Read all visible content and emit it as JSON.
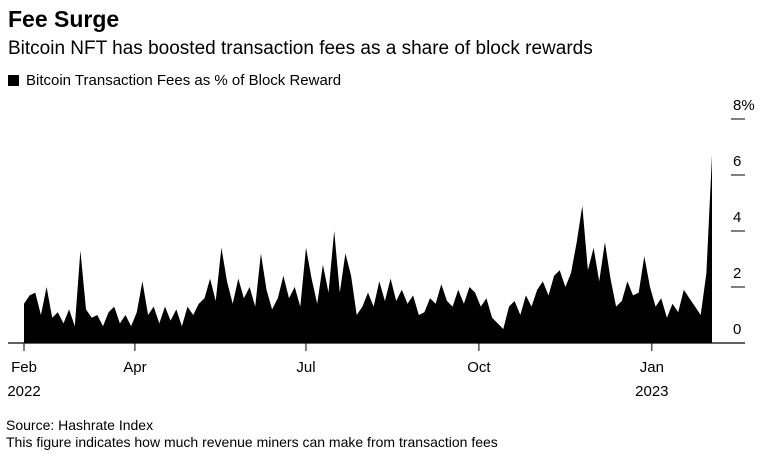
{
  "header": {
    "title": "Fee Surge",
    "subtitle": "Bitcoin NFT has boosted transaction fees as a share of block rewards"
  },
  "legend": {
    "label": "Bitcoin Transaction Fees as % of Block Reward",
    "color": "#000000"
  },
  "footer": {
    "source": "Source: Hashrate Index",
    "note": "This figure indicates how much revenue miners can make from transaction fees"
  },
  "chart_data": {
    "type": "area",
    "title": "Fee Surge",
    "subtitle": "Bitcoin NFT has boosted transaction fees as a share of block rewards",
    "xlabel": "",
    "ylabel": "",
    "ylim": [
      0,
      8
    ],
    "y_ticks": [
      {
        "value": 0,
        "label": "0"
      },
      {
        "value": 2,
        "label": "2"
      },
      {
        "value": 4,
        "label": "4"
      },
      {
        "value": 6,
        "label": "6"
      },
      {
        "value": 8,
        "label": "8%"
      }
    ],
    "x_ticks": [
      {
        "date": "2022-02-01",
        "label": "Feb",
        "sublabel": "2022"
      },
      {
        "date": "2022-04-01",
        "label": "Apr",
        "sublabel": ""
      },
      {
        "date": "2022-07-01",
        "label": "Jul",
        "sublabel": ""
      },
      {
        "date": "2022-10-01",
        "label": "Oct",
        "sublabel": ""
      },
      {
        "date": "2023-01-01",
        "label": "Jan",
        "sublabel": "2023"
      }
    ],
    "grid": false,
    "y_axis_side": "right",
    "legend_position": "top-left",
    "series": [
      {
        "name": "Bitcoin Transaction Fees as % of Block Reward",
        "color": "#000000",
        "points": [
          [
            "2022-02-01",
            1.4
          ],
          [
            "2022-02-04",
            1.7
          ],
          [
            "2022-02-07",
            1.8
          ],
          [
            "2022-02-10",
            1.0
          ],
          [
            "2022-02-13",
            2.0
          ],
          [
            "2022-02-16",
            0.9
          ],
          [
            "2022-02-19",
            1.1
          ],
          [
            "2022-02-22",
            0.7
          ],
          [
            "2022-02-25",
            1.2
          ],
          [
            "2022-02-28",
            0.6
          ],
          [
            "2022-03-03",
            3.3
          ],
          [
            "2022-03-06",
            1.2
          ],
          [
            "2022-03-09",
            0.9
          ],
          [
            "2022-03-12",
            1.0
          ],
          [
            "2022-03-15",
            0.6
          ],
          [
            "2022-03-18",
            1.1
          ],
          [
            "2022-03-21",
            1.3
          ],
          [
            "2022-03-24",
            0.7
          ],
          [
            "2022-03-27",
            1.0
          ],
          [
            "2022-03-30",
            0.6
          ],
          [
            "2022-04-02",
            1.1
          ],
          [
            "2022-04-05",
            2.2
          ],
          [
            "2022-04-08",
            1.0
          ],
          [
            "2022-04-11",
            1.3
          ],
          [
            "2022-04-14",
            0.7
          ],
          [
            "2022-04-17",
            1.3
          ],
          [
            "2022-04-20",
            0.8
          ],
          [
            "2022-04-23",
            1.2
          ],
          [
            "2022-04-26",
            0.6
          ],
          [
            "2022-04-29",
            1.3
          ],
          [
            "2022-05-02",
            1.0
          ],
          [
            "2022-05-05",
            1.4
          ],
          [
            "2022-05-08",
            1.6
          ],
          [
            "2022-05-11",
            2.3
          ],
          [
            "2022-05-14",
            1.5
          ],
          [
            "2022-05-17",
            3.4
          ],
          [
            "2022-05-20",
            2.2
          ],
          [
            "2022-05-23",
            1.4
          ],
          [
            "2022-05-26",
            2.3
          ],
          [
            "2022-05-29",
            1.6
          ],
          [
            "2022-06-01",
            2.0
          ],
          [
            "2022-06-04",
            1.3
          ],
          [
            "2022-06-07",
            3.2
          ],
          [
            "2022-06-10",
            1.9
          ],
          [
            "2022-06-13",
            1.2
          ],
          [
            "2022-06-16",
            1.6
          ],
          [
            "2022-06-19",
            2.4
          ],
          [
            "2022-06-22",
            1.6
          ],
          [
            "2022-06-25",
            2.0
          ],
          [
            "2022-06-28",
            1.3
          ],
          [
            "2022-07-01",
            3.4
          ],
          [
            "2022-07-04",
            2.3
          ],
          [
            "2022-07-07",
            1.4
          ],
          [
            "2022-07-10",
            2.8
          ],
          [
            "2022-07-13",
            1.8
          ],
          [
            "2022-07-16",
            4.0
          ],
          [
            "2022-07-19",
            1.8
          ],
          [
            "2022-07-22",
            3.2
          ],
          [
            "2022-07-25",
            2.4
          ],
          [
            "2022-07-28",
            1.0
          ],
          [
            "2022-07-31",
            1.3
          ],
          [
            "2022-08-03",
            1.8
          ],
          [
            "2022-08-06",
            1.3
          ],
          [
            "2022-08-09",
            2.2
          ],
          [
            "2022-08-12",
            1.5
          ],
          [
            "2022-08-15",
            2.3
          ],
          [
            "2022-08-18",
            1.5
          ],
          [
            "2022-08-21",
            1.9
          ],
          [
            "2022-08-24",
            1.4
          ],
          [
            "2022-08-27",
            1.7
          ],
          [
            "2022-08-30",
            1.0
          ],
          [
            "2022-09-02",
            1.1
          ],
          [
            "2022-09-05",
            1.6
          ],
          [
            "2022-09-08",
            1.4
          ],
          [
            "2022-09-11",
            2.1
          ],
          [
            "2022-09-14",
            1.5
          ],
          [
            "2022-09-17",
            1.3
          ],
          [
            "2022-09-20",
            1.9
          ],
          [
            "2022-09-23",
            1.4
          ],
          [
            "2022-09-26",
            2.0
          ],
          [
            "2022-09-29",
            1.8
          ],
          [
            "2022-10-02",
            1.3
          ],
          [
            "2022-10-05",
            1.6
          ],
          [
            "2022-10-08",
            0.9
          ],
          [
            "2022-10-11",
            0.7
          ],
          [
            "2022-10-14",
            0.5
          ],
          [
            "2022-10-17",
            1.3
          ],
          [
            "2022-10-20",
            1.5
          ],
          [
            "2022-10-23",
            1.0
          ],
          [
            "2022-10-26",
            1.7
          ],
          [
            "2022-10-29",
            1.3
          ],
          [
            "2022-11-01",
            1.9
          ],
          [
            "2022-11-04",
            2.2
          ],
          [
            "2022-11-07",
            1.7
          ],
          [
            "2022-11-10",
            2.4
          ],
          [
            "2022-11-13",
            2.6
          ],
          [
            "2022-11-16",
            2.0
          ],
          [
            "2022-11-19",
            2.5
          ],
          [
            "2022-11-22",
            3.6
          ],
          [
            "2022-11-25",
            4.9
          ],
          [
            "2022-11-28",
            2.6
          ],
          [
            "2022-12-01",
            3.4
          ],
          [
            "2022-12-04",
            2.2
          ],
          [
            "2022-12-07",
            3.6
          ],
          [
            "2022-12-10",
            2.3
          ],
          [
            "2022-12-13",
            1.3
          ],
          [
            "2022-12-16",
            1.5
          ],
          [
            "2022-12-19",
            2.2
          ],
          [
            "2022-12-22",
            1.7
          ],
          [
            "2022-12-25",
            1.8
          ],
          [
            "2022-12-28",
            3.1
          ],
          [
            "2022-12-31",
            2.0
          ],
          [
            "2023-01-03",
            1.3
          ],
          [
            "2023-01-06",
            1.6
          ],
          [
            "2023-01-09",
            0.9
          ],
          [
            "2023-01-12",
            1.4
          ],
          [
            "2023-01-15",
            1.1
          ],
          [
            "2023-01-18",
            1.9
          ],
          [
            "2023-01-21",
            1.6
          ],
          [
            "2023-01-24",
            1.3
          ],
          [
            "2023-01-27",
            1.0
          ],
          [
            "2023-01-30",
            2.5
          ],
          [
            "2023-02-02",
            6.7
          ]
        ]
      }
    ]
  }
}
